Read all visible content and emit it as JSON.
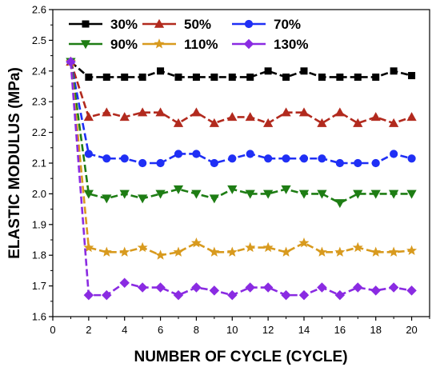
{
  "chart_data": {
    "type": "line",
    "xlabel": "NUMBER OF CYCLE (CYCLE)",
    "ylabel": "ELASTIC MODULUS (MPa)",
    "xlim": [
      0,
      21
    ],
    "ylim": [
      1.6,
      2.6
    ],
    "xticks": [
      0,
      2,
      4,
      6,
      8,
      10,
      12,
      14,
      16,
      18,
      20
    ],
    "yticks": [
      1.6,
      1.7,
      1.8,
      1.9,
      2.0,
      2.1,
      2.2,
      2.3,
      2.4,
      2.5,
      2.6
    ],
    "grid": false,
    "legend_position": "top-left",
    "x": [
      1,
      2,
      3,
      4,
      5,
      6,
      7,
      8,
      9,
      10,
      11,
      12,
      13,
      14,
      15,
      16,
      17,
      18,
      19,
      20
    ],
    "series": [
      {
        "name": "30%",
        "color": "#000000",
        "marker": "square",
        "values": [
          2.43,
          2.38,
          2.38,
          2.38,
          2.38,
          2.4,
          2.38,
          2.38,
          2.38,
          2.38,
          2.38,
          2.4,
          2.38,
          2.4,
          2.38,
          2.38,
          2.38,
          2.38,
          2.4,
          2.385
        ]
      },
      {
        "name": "50%",
        "color": "#b22a1e",
        "marker": "triangle-up",
        "values": [
          2.43,
          2.25,
          2.265,
          2.25,
          2.265,
          2.265,
          2.23,
          2.265,
          2.23,
          2.25,
          2.25,
          2.23,
          2.265,
          2.265,
          2.23,
          2.265,
          2.23,
          2.25,
          2.23,
          2.25
        ]
      },
      {
        "name": "70%",
        "color": "#1f2ff5",
        "marker": "circle",
        "values": [
          2.43,
          2.13,
          2.115,
          2.115,
          2.1,
          2.1,
          2.13,
          2.13,
          2.1,
          2.115,
          2.13,
          2.115,
          2.115,
          2.115,
          2.115,
          2.1,
          2.1,
          2.1,
          2.13,
          2.115
        ]
      },
      {
        "name": "90%",
        "color": "#1e7d14",
        "marker": "triangle-down",
        "values": [
          2.43,
          2.0,
          1.985,
          2.0,
          1.985,
          2.0,
          2.015,
          2.0,
          1.985,
          2.015,
          2.0,
          2.0,
          2.015,
          2.0,
          2.0,
          1.97,
          2.0,
          2.0,
          2.0,
          2.0
        ]
      },
      {
        "name": "110%",
        "color": "#d89a1e",
        "marker": "star",
        "values": [
          2.43,
          1.825,
          1.81,
          1.81,
          1.825,
          1.8,
          1.81,
          1.84,
          1.81,
          1.81,
          1.825,
          1.825,
          1.81,
          1.84,
          1.81,
          1.81,
          1.825,
          1.81,
          1.81,
          1.815
        ]
      },
      {
        "name": "130%",
        "color": "#8a2be2",
        "marker": "diamond",
        "values": [
          2.43,
          1.67,
          1.67,
          1.71,
          1.695,
          1.695,
          1.67,
          1.695,
          1.685,
          1.67,
          1.695,
          1.695,
          1.67,
          1.67,
          1.695,
          1.67,
          1.695,
          1.685,
          1.695,
          1.685
        ]
      }
    ]
  }
}
